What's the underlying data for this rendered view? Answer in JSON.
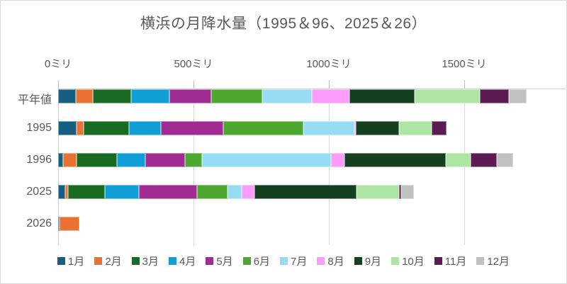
{
  "chart_data": {
    "type": "bar",
    "stacked": true,
    "orientation": "horizontal",
    "title": "横浜の月降水量（1995＆96、2025＆26）",
    "unit": "ミリ",
    "categories": [
      "平年値",
      "1995",
      "1996",
      "2025",
      "2026"
    ],
    "category_totals": [
      1730.8,
      1434,
      1681,
      1314,
      79
    ],
    "series": [
      {
        "name": "1月",
        "color": "#156082",
        "values": [
          64.7,
          69,
          19,
          25,
          5
        ]
      },
      {
        "name": "2月",
        "color": "#E97132",
        "values": [
          64.7,
          25,
          50,
          11,
          74
        ]
      },
      {
        "name": "3月",
        "color": "#196B24",
        "values": [
          139.5,
          168,
          149,
          136,
          0
        ]
      },
      {
        "name": "4月",
        "color": "#0F9ED5",
        "values": [
          143.1,
          117,
          105,
          126,
          0
        ]
      },
      {
        "name": "5月",
        "color": "#A02B93",
        "values": [
          152.6,
          232,
          146,
          216,
          0
        ]
      },
      {
        "name": "6月",
        "color": "#4EA72E",
        "values": [
          188.8,
          294,
          63,
          111,
          0
        ]
      },
      {
        "name": "7月",
        "color": "#96DCF5",
        "values": [
          182.5,
          189,
          476,
          53,
          0
        ]
      },
      {
        "name": "8月",
        "color": "#FB9BFA",
        "values": [
          139.0,
          5,
          50,
          46,
          0
        ]
      },
      {
        "name": "9月",
        "color": "#14401F",
        "values": [
          241.5,
          160,
          375,
          379,
          0
        ]
      },
      {
        "name": "10月",
        "color": "#AEE5A2",
        "values": [
          240.4,
          121,
          91,
          155,
          0
        ]
      },
      {
        "name": "11月",
        "color": "#5C1B53",
        "values": [
          107.6,
          54,
          97,
          9,
          0
        ]
      },
      {
        "name": "12月",
        "color": "#C1C1C1",
        "values": [
          66.4,
          0,
          60,
          47,
          0
        ]
      }
    ],
    "x_ticks": [
      {
        "value": 0,
        "label": "0ミリ"
      },
      {
        "value": 500,
        "label": "500ミリ"
      },
      {
        "value": 1000,
        "label": "1000ミリ"
      },
      {
        "value": 1500,
        "label": "1500ミリ"
      }
    ],
    "xlim": [
      0,
      1875
    ],
    "grid": true,
    "legend_position": "bottom"
  },
  "colors": {
    "title_text": "#595959",
    "axis_text": "#595959",
    "gridline": "#D9D9D9",
    "axis_line": "#CFCFCF",
    "background": "#FFFFFF",
    "border": "#D9D9D9"
  }
}
